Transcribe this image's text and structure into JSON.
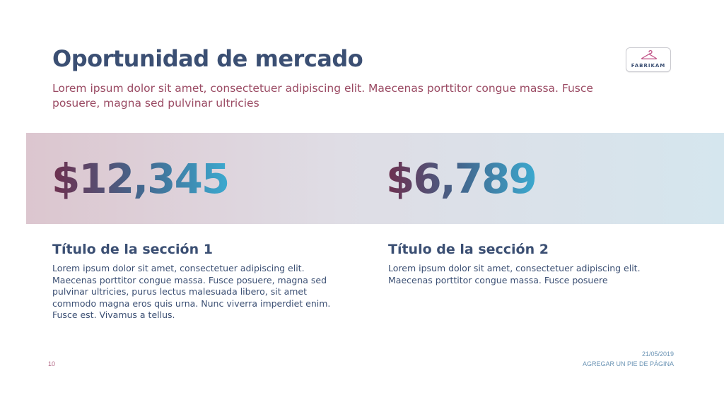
{
  "header": {
    "title": "Oportunidad de mercado",
    "subtitle": "Lorem ipsum dolor sit amet, consectetuer adipiscing elit. Maecenas porttitor congue massa. Fusce posuere, magna sed pulvinar ultricies"
  },
  "logo": {
    "text": "FABRIKAM",
    "icon": "hanger-icon"
  },
  "figures": [
    {
      "value": "$12,345"
    },
    {
      "value": "$6,789"
    }
  ],
  "sections": [
    {
      "title": "Título de la sección 1",
      "body": "Lorem ipsum dolor sit amet, consectetuer adipiscing elit. Maecenas porttitor congue massa. Fusce posuere, magna sed pulvinar ultricies, purus lectus malesuada libero, sit amet commodo magna eros quis urna. Nunc viverra imperdiet enim. Fusce est. Vivamus a tellus."
    },
    {
      "title": "Título de la sección 2",
      "body": "Lorem ipsum dolor sit amet, consectetuer adipiscing elit. Maecenas porttitor congue massa. Fusce posuere"
    }
  ],
  "footer": {
    "page_number": "10",
    "date": "21/05/2019",
    "text": "AGREGAR UN PIE DE PÁGINA"
  },
  "colors": {
    "title": "#3b4f73",
    "subtitle": "#9a4a63",
    "gradient_start": "#6e2f4e",
    "gradient_end": "#3ba9cf"
  }
}
